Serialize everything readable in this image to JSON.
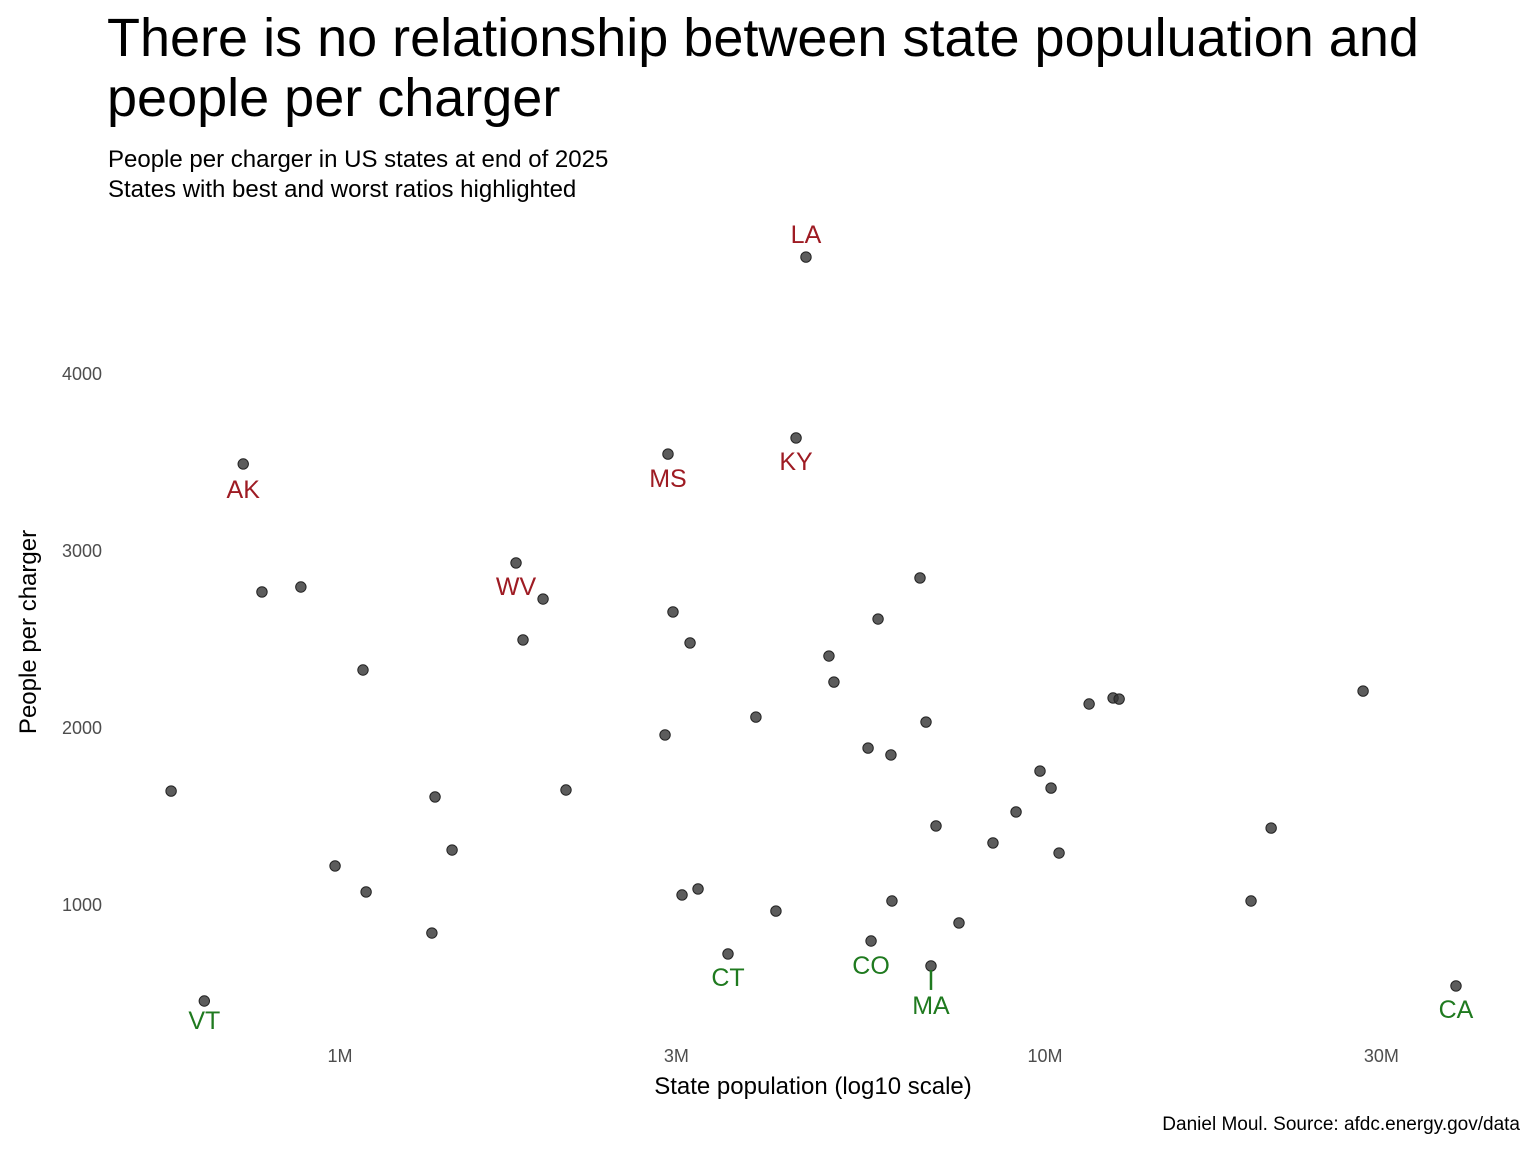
{
  "title": "There is no relationship between state populuation and people per charger",
  "subtitle_lines": [
    "People per charger in US states at end of 2025",
    "States with best and worst ratios highlighted"
  ],
  "caption": "Daniel Moul. Source: afdc.energy.gov/data",
  "colors": {
    "worst": "#9e1b23",
    "best": "#1f7a1f",
    "point": "#333333"
  },
  "chart_data": {
    "type": "scatter",
    "title": "There is no relationship between state populuation and people per charger",
    "xlabel": "State population (log10 scale)",
    "ylabel": "People per charger",
    "x_scale": "log10",
    "x_units": "millions",
    "xlim": [
      0.5,
      42
    ],
    "ylim": [
      380,
      4720
    ],
    "x_ticks": [
      {
        "value": 1,
        "label": "1M"
      },
      {
        "value": 3,
        "label": "3M"
      },
      {
        "value": 10,
        "label": "10M"
      },
      {
        "value": 30,
        "label": "30M"
      }
    ],
    "y_ticks": [
      {
        "value": 1000,
        "label": "1000"
      },
      {
        "value": 2000,
        "label": "2000"
      },
      {
        "value": 3000,
        "label": "3000"
      },
      {
        "value": 4000,
        "label": "4000"
      }
    ],
    "grid": false,
    "points": [
      {
        "x": 0.576,
        "y": 1638,
        "label": null,
        "group": null
      },
      {
        "x": 0.642,
        "y": 452,
        "label": "VT",
        "group": "best"
      },
      {
        "x": 0.729,
        "y": 3486,
        "label": "AK",
        "group": "worst"
      },
      {
        "x": 0.775,
        "y": 2763,
        "label": null,
        "group": null
      },
      {
        "x": 0.88,
        "y": 2791,
        "label": null,
        "group": null
      },
      {
        "x": 1.078,
        "y": 2322,
        "label": null,
        "group": null
      },
      {
        "x": 0.984,
        "y": 1215,
        "label": null,
        "group": null
      },
      {
        "x": 1.089,
        "y": 1068,
        "label": null,
        "group": null
      },
      {
        "x": 1.364,
        "y": 1605,
        "label": null,
        "group": null
      },
      {
        "x": 1.442,
        "y": 1305,
        "label": null,
        "group": null
      },
      {
        "x": 1.35,
        "y": 836,
        "label": null,
        "group": null
      },
      {
        "x": 1.777,
        "y": 2927,
        "label": "WV",
        "group": "worst"
      },
      {
        "x": 1.941,
        "y": 2723,
        "label": null,
        "group": null
      },
      {
        "x": 1.818,
        "y": 2492,
        "label": null,
        "group": null
      },
      {
        "x": 2.092,
        "y": 1644,
        "label": null,
        "group": null
      },
      {
        "x": 2.919,
        "y": 3542,
        "label": "MS",
        "group": "worst"
      },
      {
        "x": 2.967,
        "y": 2650,
        "label": null,
        "group": null
      },
      {
        "x": 3.137,
        "y": 2475,
        "label": null,
        "group": null
      },
      {
        "x": 2.891,
        "y": 1955,
        "label": null,
        "group": null
      },
      {
        "x": 3.056,
        "y": 1051,
        "label": null,
        "group": null
      },
      {
        "x": 3.22,
        "y": 1085,
        "label": null,
        "group": null
      },
      {
        "x": 3.551,
        "y": 718,
        "label": "CT",
        "group": "best"
      },
      {
        "x": 4.153,
        "y": 960,
        "label": null,
        "group": null
      },
      {
        "x": 3.89,
        "y": 2056,
        "label": null,
        "group": null
      },
      {
        "x": 4.435,
        "y": 3633,
        "label": "KY",
        "group": "worst"
      },
      {
        "x": 4.581,
        "y": 4655,
        "label": "LA",
        "group": "worst"
      },
      {
        "x": 4.938,
        "y": 2401,
        "label": null,
        "group": null
      },
      {
        "x": 5.019,
        "y": 2254,
        "label": null,
        "group": null
      },
      {
        "x": 5.797,
        "y": 2610,
        "label": null,
        "group": null
      },
      {
        "x": 5.611,
        "y": 1881,
        "label": null,
        "group": null
      },
      {
        "x": 6.046,
        "y": 1842,
        "label": null,
        "group": null
      },
      {
        "x": 6.066,
        "y": 1017,
        "label": null,
        "group": null
      },
      {
        "x": 5.666,
        "y": 791,
        "label": "CO",
        "group": "best"
      },
      {
        "x": 6.648,
        "y": 2842,
        "label": null,
        "group": null
      },
      {
        "x": 6.78,
        "y": 2028,
        "label": null,
        "group": null
      },
      {
        "x": 7.005,
        "y": 1441,
        "label": null,
        "group": null
      },
      {
        "x": 6.891,
        "y": 650,
        "label": "MA",
        "group": "best"
      },
      {
        "x": 7.551,
        "y": 893,
        "label": null,
        "group": null
      },
      {
        "x": 8.437,
        "y": 1345,
        "label": null,
        "group": null
      },
      {
        "x": 9.098,
        "y": 1520,
        "label": null,
        "group": null
      },
      {
        "x": 9.838,
        "y": 1751,
        "label": null,
        "group": null
      },
      {
        "x": 10.2,
        "y": 1655,
        "label": null,
        "group": null
      },
      {
        "x": 10.47,
        "y": 1288,
        "label": null,
        "group": null
      },
      {
        "x": 11.55,
        "y": 2130,
        "label": null,
        "group": null
      },
      {
        "x": 12.49,
        "y": 2164,
        "label": null,
        "group": null
      },
      {
        "x": 12.74,
        "y": 2158,
        "label": null,
        "group": null
      },
      {
        "x": 19.6,
        "y": 1017,
        "label": null,
        "group": null
      },
      {
        "x": 20.93,
        "y": 1429,
        "label": null,
        "group": null
      },
      {
        "x": 28.26,
        "y": 2203,
        "label": null,
        "group": null
      },
      {
        "x": 38.28,
        "y": 537,
        "label": "CA",
        "group": "best"
      }
    ]
  }
}
